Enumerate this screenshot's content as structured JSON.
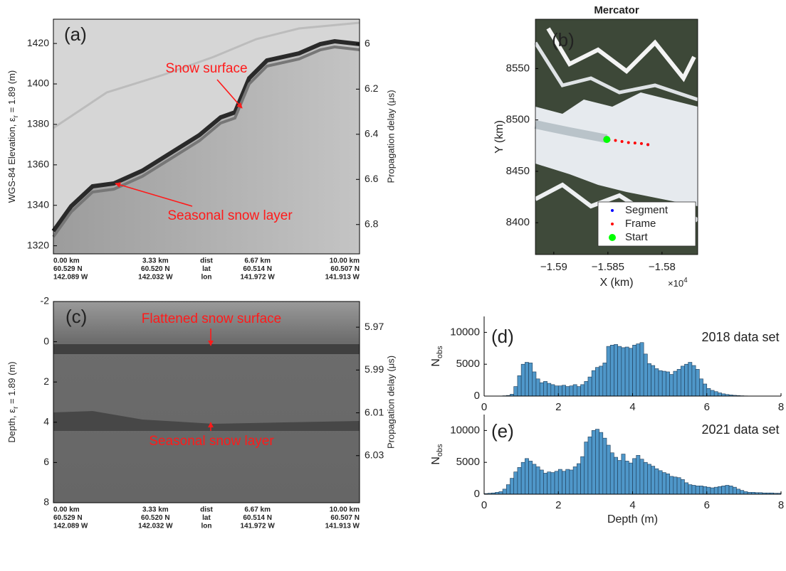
{
  "chart_data": [
    {
      "type": "radargram",
      "panel_label": "(a)",
      "ylabel": [
        "WGS-84 Elevation, ε",
        "r",
        " = 1.89 (m)"
      ],
      "ylim": [
        1316,
        1432
      ],
      "yticks": [
        1320,
        1340,
        1360,
        1380,
        1400,
        1420
      ],
      "y2label": "Propagation delay (μs)",
      "y2lim": [
        6.93,
        5.89
      ],
      "y2ticks": [
        6,
        6.2,
        6.4,
        6.6,
        6.8
      ],
      "x_labels": [
        [
          "0.00 km",
          "60.529 N",
          "142.089 W"
        ],
        [
          "3.33 km",
          "60.520 N",
          "142.032 W"
        ],
        [
          "dist",
          "lat",
          "lon"
        ],
        [
          "6.67 km",
          "60.514 N",
          "141.972 W"
        ],
        [
          "10.00 km",
          "60.507 N",
          "141.913 W"
        ]
      ],
      "annotations": [
        "Snow surface",
        "Seasonal snow layer"
      ]
    },
    {
      "type": "map",
      "panel_label": "(b)",
      "title": "Mercator",
      "xlabel": "X (km)",
      "ylabel": "Y (km)",
      "multiplier": [
        "×10",
        "4"
      ],
      "xlim": [
        -1.5917,
        -1.5767
      ],
      "xticks": [
        {
          "value": -1.59,
          "label": "−1.59"
        },
        {
          "value": -1.585,
          "label": "−1.585"
        },
        {
          "value": -1.58,
          "label": "−1.58"
        }
      ],
      "ylim": [
        8369,
        8598
      ],
      "yticks": [
        8400,
        8450,
        8500,
        8550
      ],
      "series": [
        {
          "name": "Segment",
          "color": "#0000ff",
          "x": [
            -1.5851,
            -1.5813
          ],
          "y": [
            8481,
            8476
          ]
        },
        {
          "name": "Frame",
          "color": "#ff0000",
          "x": [
            -1.5849,
            -1.5843,
            -1.5837,
            -1.5831,
            -1.5825,
            -1.5819,
            -1.5813
          ],
          "y": [
            8480.5,
            8480,
            8479,
            8478,
            8477.5,
            8477,
            8476
          ]
        },
        {
          "name": "Start",
          "color": "#00ff00",
          "x": [
            -1.5851
          ],
          "y": [
            8481
          ]
        }
      ]
    },
    {
      "type": "radargram",
      "panel_label": "(c)",
      "ylabel": [
        "Depth, ε",
        "r",
        " = 1.89 (m)"
      ],
      "ylim": [
        8,
        -2
      ],
      "yticks": [
        -2,
        0,
        2,
        4,
        6,
        8
      ],
      "y2label": "Propagation delay (μs)",
      "y2lim": [
        6.052,
        5.958
      ],
      "y2ticks": [
        5.97,
        5.99,
        6.01,
        6.03
      ],
      "x_labels": [
        [
          "0.00 km",
          "60.529 N",
          "142.089 W"
        ],
        [
          "3.33 km",
          "60.520 N",
          "142.032 W"
        ],
        [
          "dist",
          "lat",
          "lon"
        ],
        [
          "6.67 km",
          "60.514 N",
          "141.972 W"
        ],
        [
          "10.00 km",
          "60.507 N",
          "141.913 W"
        ]
      ],
      "annotations": [
        "Flattened snow surface",
        "Seasonal snow layer"
      ]
    },
    {
      "type": "histogram",
      "panel_label": "(d)",
      "annotation": "2018 data set",
      "ylabel": [
        "N",
        "obs"
      ],
      "color": "#4f97c9",
      "xlim": [
        0,
        8
      ],
      "xticks": [
        0,
        2,
        4,
        6,
        8
      ],
      "ylim": [
        0,
        12500
      ],
      "yticks": [
        0,
        5000,
        10000
      ],
      "bins": [
        0,
        0.1,
        0.2,
        0.3,
        0.4,
        0.5,
        0.6,
        0.7,
        0.8,
        0.9,
        1,
        1.1,
        1.2,
        1.3,
        1.4,
        1.5,
        1.6,
        1.7,
        1.8,
        1.9,
        2,
        2.1,
        2.2,
        2.3,
        2.4,
        2.5,
        2.6,
        2.7,
        2.8,
        2.9,
        3,
        3.1,
        3.2,
        3.3,
        3.4,
        3.5,
        3.6,
        3.7,
        3.8,
        3.9,
        4,
        4.1,
        4.2,
        4.3,
        4.4,
        4.5,
        4.6,
        4.7,
        4.8,
        4.9,
        5,
        5.1,
        5.2,
        5.3,
        5.4,
        5.5,
        5.6,
        5.7,
        5.8,
        5.9,
        6,
        6.1,
        6.2,
        6.3,
        6.4,
        6.5,
        6.6,
        6.7,
        6.8,
        6.9,
        7,
        7.1,
        7.2,
        7.3,
        7.4,
        7.5,
        7.6,
        7.7,
        7.8,
        7.9,
        8
      ],
      "values": [
        0,
        0,
        0,
        0,
        0,
        50,
        100,
        300,
        1500,
        3200,
        5000,
        5300,
        5200,
        3800,
        2700,
        2100,
        2300,
        2000,
        1800,
        1600,
        1600,
        1700,
        1500,
        1600,
        1800,
        1500,
        1800,
        2300,
        3000,
        4000,
        4500,
        4700,
        5200,
        7800,
        8000,
        8100,
        7800,
        7600,
        7700,
        7500,
        8000,
        8200,
        8400,
        6600,
        5100,
        4800,
        4300,
        4000,
        3900,
        3800,
        3400,
        3900,
        4200,
        4700,
        5000,
        5300,
        4800,
        4200,
        2700,
        1900,
        1200,
        900,
        700,
        500,
        350,
        250,
        180,
        120,
        80,
        50,
        30,
        20,
        10,
        10,
        0,
        0,
        0,
        0,
        0,
        0
      ]
    },
    {
      "type": "histogram",
      "panel_label": "(e)",
      "annotation": "2021 data set",
      "ylabel": [
        "N",
        "obs"
      ],
      "xlabel": "Depth (m)",
      "color": "#4f97c9",
      "xlim": [
        0,
        8
      ],
      "xticks": [
        0,
        2,
        4,
        6,
        8
      ],
      "ylim": [
        0,
        12500
      ],
      "yticks": [
        0,
        5000,
        10000
      ],
      "bins": [
        0,
        0.1,
        0.2,
        0.3,
        0.4,
        0.5,
        0.6,
        0.7,
        0.8,
        0.9,
        1,
        1.1,
        1.2,
        1.3,
        1.4,
        1.5,
        1.6,
        1.7,
        1.8,
        1.9,
        2,
        2.1,
        2.2,
        2.3,
        2.4,
        2.5,
        2.6,
        2.7,
        2.8,
        2.9,
        3,
        3.1,
        3.2,
        3.3,
        3.4,
        3.5,
        3.6,
        3.7,
        3.8,
        3.9,
        4,
        4.1,
        4.2,
        4.3,
        4.4,
        4.5,
        4.6,
        4.7,
        4.8,
        4.9,
        5,
        5.1,
        5.2,
        5.3,
        5.4,
        5.5,
        5.6,
        5.7,
        5.8,
        5.9,
        6,
        6.1,
        6.2,
        6.3,
        6.4,
        6.5,
        6.6,
        6.7,
        6.8,
        6.9,
        7,
        7.1,
        7.2,
        7.3,
        7.4,
        7.5,
        7.6,
        7.7,
        7.8,
        7.9,
        8
      ],
      "values": [
        100,
        150,
        200,
        300,
        400,
        800,
        1500,
        2500,
        3500,
        4200,
        5000,
        5600,
        5200,
        4700,
        4300,
        3800,
        3300,
        3500,
        3400,
        3600,
        3900,
        3600,
        3900,
        3800,
        4300,
        4800,
        5900,
        8200,
        9000,
        10000,
        10200,
        9700,
        8800,
        7700,
        6500,
        5800,
        5300,
        6300,
        5200,
        4900,
        5600,
        6100,
        5500,
        5000,
        4700,
        4400,
        4000,
        3700,
        3400,
        3200,
        2800,
        2700,
        2600,
        2300,
        1800,
        1500,
        1400,
        1300,
        1300,
        1200,
        1100,
        1000,
        1100,
        1200,
        1300,
        1400,
        1300,
        1100,
        800,
        600,
        400,
        300,
        300,
        250,
        250,
        200,
        200,
        200,
        150,
        150
      ]
    }
  ]
}
